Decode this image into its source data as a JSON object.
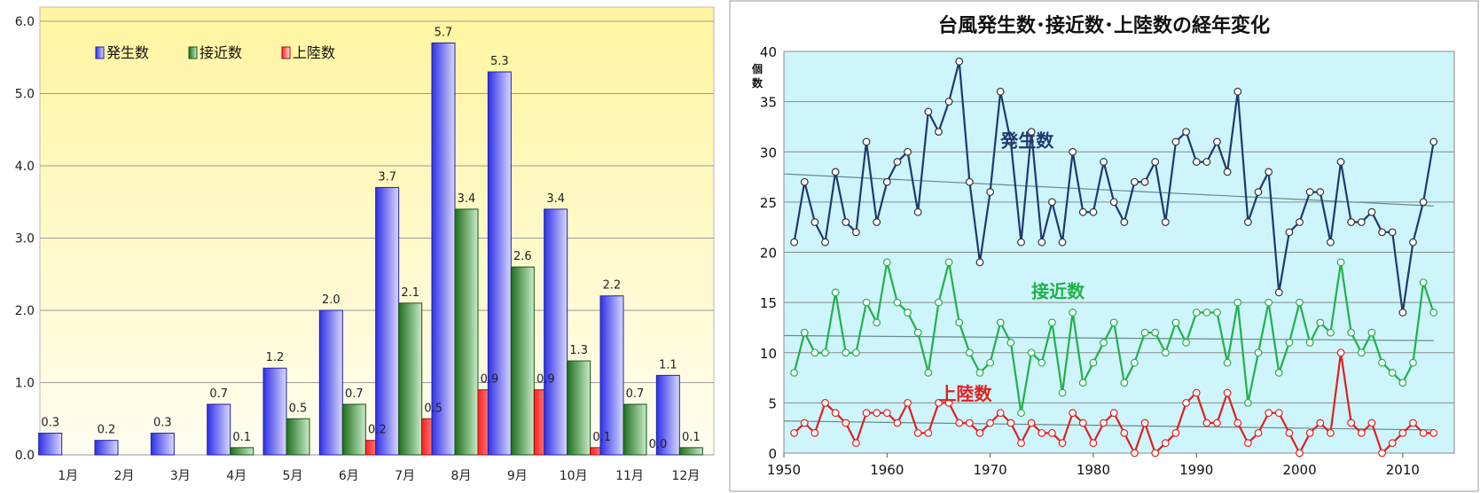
{
  "chart_data": [
    {
      "type": "bar",
      "title": "",
      "categories": [
        "1月",
        "2月",
        "3月",
        "4月",
        "5月",
        "6月",
        "7月",
        "8月",
        "9月",
        "10月",
        "11月",
        "12月"
      ],
      "ylim": [
        0,
        6
      ],
      "yticks": [
        "0.0",
        "1.0",
        "2.0",
        "3.0",
        "4.0",
        "5.0",
        "6.0"
      ],
      "grid": true,
      "legend_position": "top-left",
      "series": [
        {
          "name": "発生数",
          "color": "#4040ff",
          "values": [
            0.3,
            0.2,
            0.3,
            0.7,
            1.2,
            2.0,
            3.7,
            5.7,
            5.3,
            3.4,
            2.2,
            1.1
          ],
          "labels": [
            "0.3",
            "0.2",
            "0.3",
            "0.7",
            "1.2",
            "2.0",
            "3.7",
            "5.7",
            "5.3",
            "3.4",
            "2.2",
            "1.1"
          ]
        },
        {
          "name": "接近数",
          "color": "#2e8b2e",
          "values": [
            0,
            0,
            0,
            0.1,
            0.5,
            0.7,
            2.1,
            3.4,
            2.6,
            1.3,
            0.7,
            0.1
          ],
          "labels": [
            "",
            "",
            "",
            "0.1",
            "0.5",
            "0.7",
            "2.1",
            "3.4",
            "2.6",
            "1.3",
            "0.7",
            "0.1"
          ]
        },
        {
          "name": "上陸数",
          "color": "#ff4040",
          "values": [
            0,
            0,
            0,
            0,
            0,
            0.2,
            0.5,
            0.9,
            0.9,
            0.1,
            0.0,
            0
          ],
          "labels": [
            "",
            "",
            "",
            "",
            "",
            "0.2",
            "0.5",
            "0.9",
            "0.9",
            "0.1",
            "0.0",
            ""
          ]
        }
      ]
    },
    {
      "type": "line",
      "title": "台風発生数･接近数･上陸数の経年変化",
      "ylabel": "個数",
      "xlim": [
        1950,
        2015
      ],
      "ylim": [
        0,
        40
      ],
      "xticks": [
        1950,
        1960,
        1970,
        1980,
        1990,
        2000,
        2010
      ],
      "yticks": [
        0,
        5,
        10,
        15,
        20,
        25,
        30,
        35,
        40
      ],
      "grid": true,
      "x": [
        1951,
        1952,
        1953,
        1954,
        1955,
        1956,
        1957,
        1958,
        1959,
        1960,
        1961,
        1962,
        1963,
        1964,
        1965,
        1966,
        1967,
        1968,
        1969,
        1970,
        1971,
        1972,
        1973,
        1974,
        1975,
        1976,
        1977,
        1978,
        1979,
        1980,
        1981,
        1982,
        1983,
        1984,
        1985,
        1986,
        1987,
        1988,
        1989,
        1990,
        1991,
        1992,
        1993,
        1994,
        1995,
        1996,
        1997,
        1998,
        1999,
        2000,
        2001,
        2002,
        2003,
        2004,
        2005,
        2006,
        2007,
        2008,
        2009,
        2010,
        2011,
        2012,
        2013
      ],
      "series": [
        {
          "name": "発生数",
          "color": "#1f3a6e",
          "label_color": "#1f3a6e",
          "values": [
            21,
            27,
            23,
            21,
            28,
            23,
            22,
            31,
            23,
            27,
            29,
            30,
            24,
            34,
            32,
            35,
            39,
            27,
            19,
            26,
            36,
            31,
            21,
            32,
            21,
            25,
            21,
            30,
            24,
            24,
            29,
            25,
            23,
            27,
            27,
            29,
            23,
            31,
            32,
            29,
            29,
            31,
            28,
            36,
            23,
            26,
            28,
            16,
            22,
            23,
            26,
            26,
            21,
            29,
            23,
            23,
            24,
            22,
            22,
            14,
            21,
            25,
            31
          ],
          "trend": [
            27.8,
            24.6
          ]
        },
        {
          "name": "接近数",
          "color": "#22b04a",
          "label_color": "#22b04a",
          "values": [
            8,
            12,
            10,
            10,
            16,
            10,
            10,
            15,
            13,
            19,
            15,
            14,
            12,
            8,
            15,
            19,
            13,
            10,
            8,
            9,
            13,
            11,
            4,
            10,
            9,
            13,
            6,
            14,
            7,
            9,
            11,
            13,
            7,
            9,
            12,
            12,
            10,
            13,
            11,
            14,
            14,
            14,
            9,
            15,
            5,
            10,
            15,
            8,
            11,
            15,
            11,
            13,
            12,
            19,
            12,
            10,
            12,
            9,
            8,
            7,
            9,
            17,
            14
          ],
          "trend": [
            11.7,
            11.2
          ]
        },
        {
          "name": "上陸数",
          "color": "#e02020",
          "label_color": "#e02020",
          "values": [
            2,
            3,
            2,
            5,
            4,
            3,
            1,
            4,
            4,
            4,
            3,
            5,
            2,
            2,
            5,
            5,
            3,
            3,
            2,
            3,
            4,
            3,
            1,
            3,
            2,
            2,
            1,
            4,
            3,
            1,
            3,
            4,
            2,
            0,
            3,
            0,
            1,
            2,
            5,
            6,
            3,
            3,
            6,
            3,
            1,
            2,
            4,
            4,
            2,
            0,
            2,
            3,
            2,
            10,
            3,
            2,
            3,
            0,
            1,
            2,
            3,
            2,
            2
          ],
          "trend": [
            3.2,
            2.3
          ]
        }
      ]
    }
  ]
}
